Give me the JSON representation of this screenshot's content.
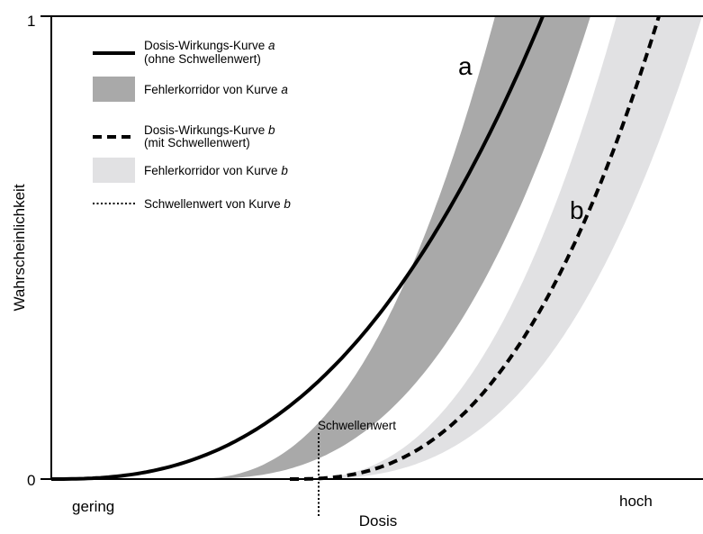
{
  "chart_data": {
    "type": "line",
    "xlabel": "Dosis",
    "ylabel": "Wahrscheinlichkeit",
    "x_ticks": [
      "gering",
      "hoch"
    ],
    "y_ticks": [
      "0",
      "1"
    ],
    "ylim": [
      0,
      1
    ],
    "grid": false,
    "legend_position": "top-left",
    "legend": [
      {
        "key": "curve_a",
        "style": "solid",
        "line1_pre": "Dosis-Wirkungs-Kurve ",
        "line1_em": "a",
        "line2": "(ohne Schwellenwert)"
      },
      {
        "key": "band_a",
        "style": "band-dark",
        "line1_pre": "Fehlerkorridor von Kurve ",
        "line1_em": "a"
      },
      {
        "key": "curve_b",
        "style": "dashed",
        "line1_pre": "Dosis-Wirkungs-Kurve ",
        "line1_em": "b",
        "line2": "(mit Schwellenwert)"
      },
      {
        "key": "band_b",
        "style": "band-light",
        "line1_pre": "Fehlerkorridor von Kurve ",
        "line1_em": "b"
      },
      {
        "key": "threshold_b",
        "style": "dotted",
        "line1_pre": "Schwellenwert von Kurve ",
        "line1_em": "b"
      }
    ],
    "curve_labels": {
      "a": "a",
      "b": "b"
    },
    "threshold_label": "Schwellenwert",
    "colors": {
      "curve": "#000000",
      "band_a": "#a9a9a9",
      "band_b": "#e1e1e3",
      "axis": "#000000"
    }
  }
}
